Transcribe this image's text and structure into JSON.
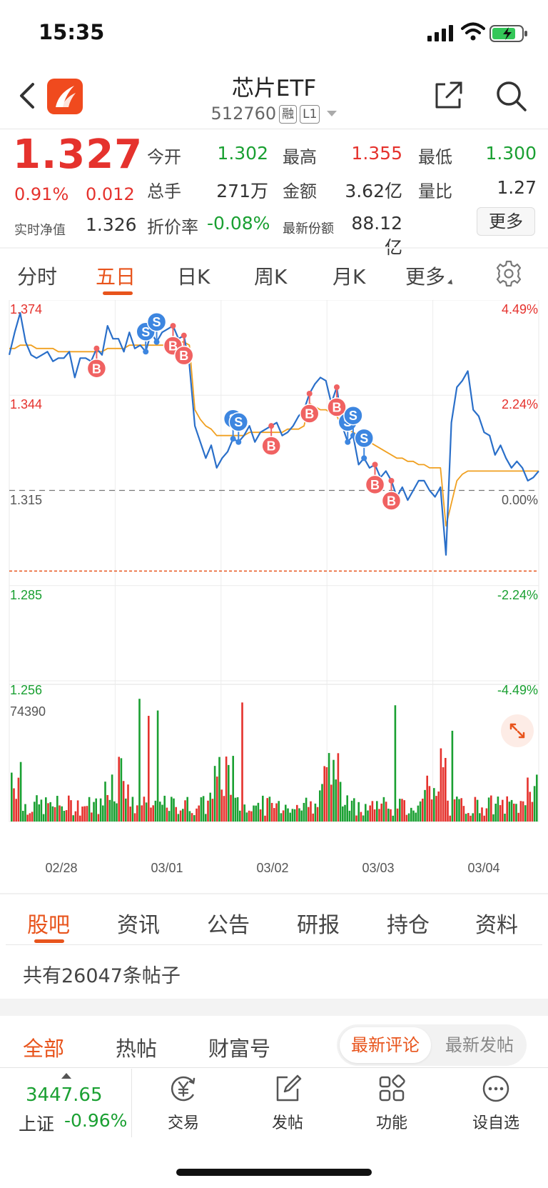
{
  "status_bar": {
    "time": "15:35"
  },
  "nav": {
    "title": "芯片ETF",
    "code": "512760",
    "tag_margin": "融",
    "tag_level": "L1"
  },
  "quote": {
    "price": "1.327",
    "change_pct": "0.91%",
    "change_abs": "0.012",
    "nav_label": "实时净值",
    "nav_value": "1.326",
    "fields": [
      {
        "label": "今开",
        "value": "1.302",
        "color": "green"
      },
      {
        "label": "最高",
        "value": "1.355",
        "color": "red"
      },
      {
        "label": "最低",
        "value": "1.300",
        "color": "green"
      },
      {
        "label": "总手",
        "value": "271万",
        "color": "dark"
      },
      {
        "label": "金额",
        "value": "3.62亿",
        "color": "dark"
      },
      {
        "label": "量比",
        "value": "1.27",
        "color": "dark"
      },
      {
        "label": "折价率",
        "value": "-0.08%",
        "color": "green"
      },
      {
        "label": "最新份额",
        "value": "88.12亿",
        "color": "dark"
      }
    ],
    "more_label": "更多"
  },
  "chart_tabs": [
    "分时",
    "五日",
    "日K",
    "周K",
    "月K",
    "更多"
  ],
  "chart_tabs_active": 1,
  "chart_data": {
    "type": "line",
    "period": "five-day intraday",
    "x_labels": [
      "02/28",
      "03/01",
      "03/02",
      "03/03",
      "03/04"
    ],
    "ylim": [
      1.256,
      1.374
    ],
    "y_ticks_left": [
      "1.374",
      "1.344",
      "1.315",
      "1.285",
      "1.256"
    ],
    "y_ticks_right": [
      "4.49%",
      "2.24%",
      "0.00%",
      "-2.24%",
      "-4.49%"
    ],
    "reference_price": 1.315,
    "cost_line": 1.29,
    "series": [
      {
        "name": "",
        "color": "#2a6fc9",
        "values": [
          1.357,
          1.364,
          1.37,
          1.361,
          1.357,
          1.356,
          1.357,
          1.358,
          1.355,
          1.356,
          1.356,
          1.358,
          1.35,
          1.356,
          1.356,
          1.355,
          1.359,
          1.357,
          1.366,
          1.362,
          1.362,
          1.358,
          1.364,
          1.359,
          1.36,
          1.358,
          1.364,
          1.361,
          1.364,
          1.365,
          1.366,
          1.362,
          1.363,
          1.354,
          1.335,
          1.33,
          1.325,
          1.329,
          1.322,
          1.325,
          1.327,
          1.331,
          1.33,
          1.332,
          1.335,
          1.33,
          1.333,
          1.334,
          1.335,
          1.336,
          1.332,
          1.333,
          1.335,
          1.338,
          1.34,
          1.345,
          1.348,
          1.35,
          1.349,
          1.342,
          1.347,
          1.335,
          1.33,
          1.332,
          1.323,
          1.325,
          1.322,
          1.323,
          1.319,
          1.321,
          1.318,
          1.313,
          1.316,
          1.312,
          1.315,
          1.318,
          1.318,
          1.315,
          1.313,
          1.316,
          1.295,
          1.336,
          1.347,
          1.349,
          1.352,
          1.34,
          1.338,
          1.333,
          1.332,
          1.326,
          1.329,
          1.325,
          1.322,
          1.324,
          1.322,
          1.318,
          1.319,
          1.321
        ]
      },
      {
        "name": "",
        "color": "#f0a020",
        "values": [
          1.359,
          1.359,
          1.36,
          1.36,
          1.36,
          1.359,
          1.359,
          1.359,
          1.359,
          1.358,
          1.358,
          1.358,
          1.358,
          1.358,
          1.358,
          1.358,
          1.358,
          1.358,
          1.359,
          1.359,
          1.359,
          1.359,
          1.36,
          1.36,
          1.36,
          1.36,
          1.36,
          1.36,
          1.36,
          1.36,
          1.36,
          1.361,
          1.361,
          1.36,
          1.34,
          1.337,
          1.335,
          1.334,
          1.332,
          1.332,
          1.332,
          1.332,
          1.332,
          1.332,
          1.333,
          1.333,
          1.333,
          1.333,
          1.333,
          1.333,
          1.333,
          1.334,
          1.334,
          1.334,
          1.335,
          1.342,
          1.341,
          1.34,
          1.34,
          1.339,
          1.338,
          1.335,
          1.334,
          1.333,
          1.332,
          1.331,
          1.33,
          1.329,
          1.328,
          1.327,
          1.326,
          1.325,
          1.325,
          1.324,
          1.324,
          1.323,
          1.323,
          1.322,
          1.322,
          1.322,
          1.304,
          1.311,
          1.318,
          1.32,
          1.321,
          1.321,
          1.321,
          1.321,
          1.321,
          1.321,
          1.321,
          1.321,
          1.321,
          1.321,
          1.321,
          1.321,
          1.321,
          1.321
        ]
      }
    ],
    "markers": [
      {
        "type": "B",
        "idx": 16
      },
      {
        "type": "S",
        "idx": 25
      },
      {
        "type": "S",
        "idx": 27
      },
      {
        "type": "B",
        "idx": 30
      },
      {
        "type": "B",
        "idx": 32
      },
      {
        "type": "S",
        "idx": 41
      },
      {
        "type": "S",
        "idx": 42
      },
      {
        "type": "B",
        "idx": 48
      },
      {
        "type": "B",
        "idx": 55
      },
      {
        "type": "B",
        "idx": 60
      },
      {
        "type": "S",
        "idx": 62
      },
      {
        "type": "S",
        "idx": 63
      },
      {
        "type": "S",
        "idx": 65
      },
      {
        "type": "B",
        "idx": 67
      },
      {
        "type": "B",
        "idx": 70
      }
    ],
    "volume_max_label": "74390",
    "volume_max": 74390
  },
  "post_tabs": [
    "股吧",
    "资讯",
    "公告",
    "研报",
    "持仓",
    "资料"
  ],
  "post_tabs_active": 0,
  "post_count_text": "共有26047条帖子",
  "feed_tabs": [
    "全部",
    "热帖",
    "财富号"
  ],
  "feed_tabs_active": 0,
  "sort": {
    "latest_comment": "最新评论",
    "latest_post": "最新发帖"
  },
  "bottom_bar": {
    "index_value": "3447.65",
    "index_name": "上证",
    "index_change": "-0.96%",
    "items": [
      {
        "label": "交易",
        "icon": "trade-yen-icon"
      },
      {
        "label": "发帖",
        "icon": "edit-post-icon"
      },
      {
        "label": "功能",
        "icon": "grid-apps-icon"
      },
      {
        "label": "设自选",
        "icon": "more-dots-icon"
      }
    ]
  },
  "colors": {
    "up": "#e5322d",
    "down": "#1aa032",
    "accent": "#e8541c",
    "price_line": "#2a6fc9",
    "avg_line": "#f0a020"
  }
}
